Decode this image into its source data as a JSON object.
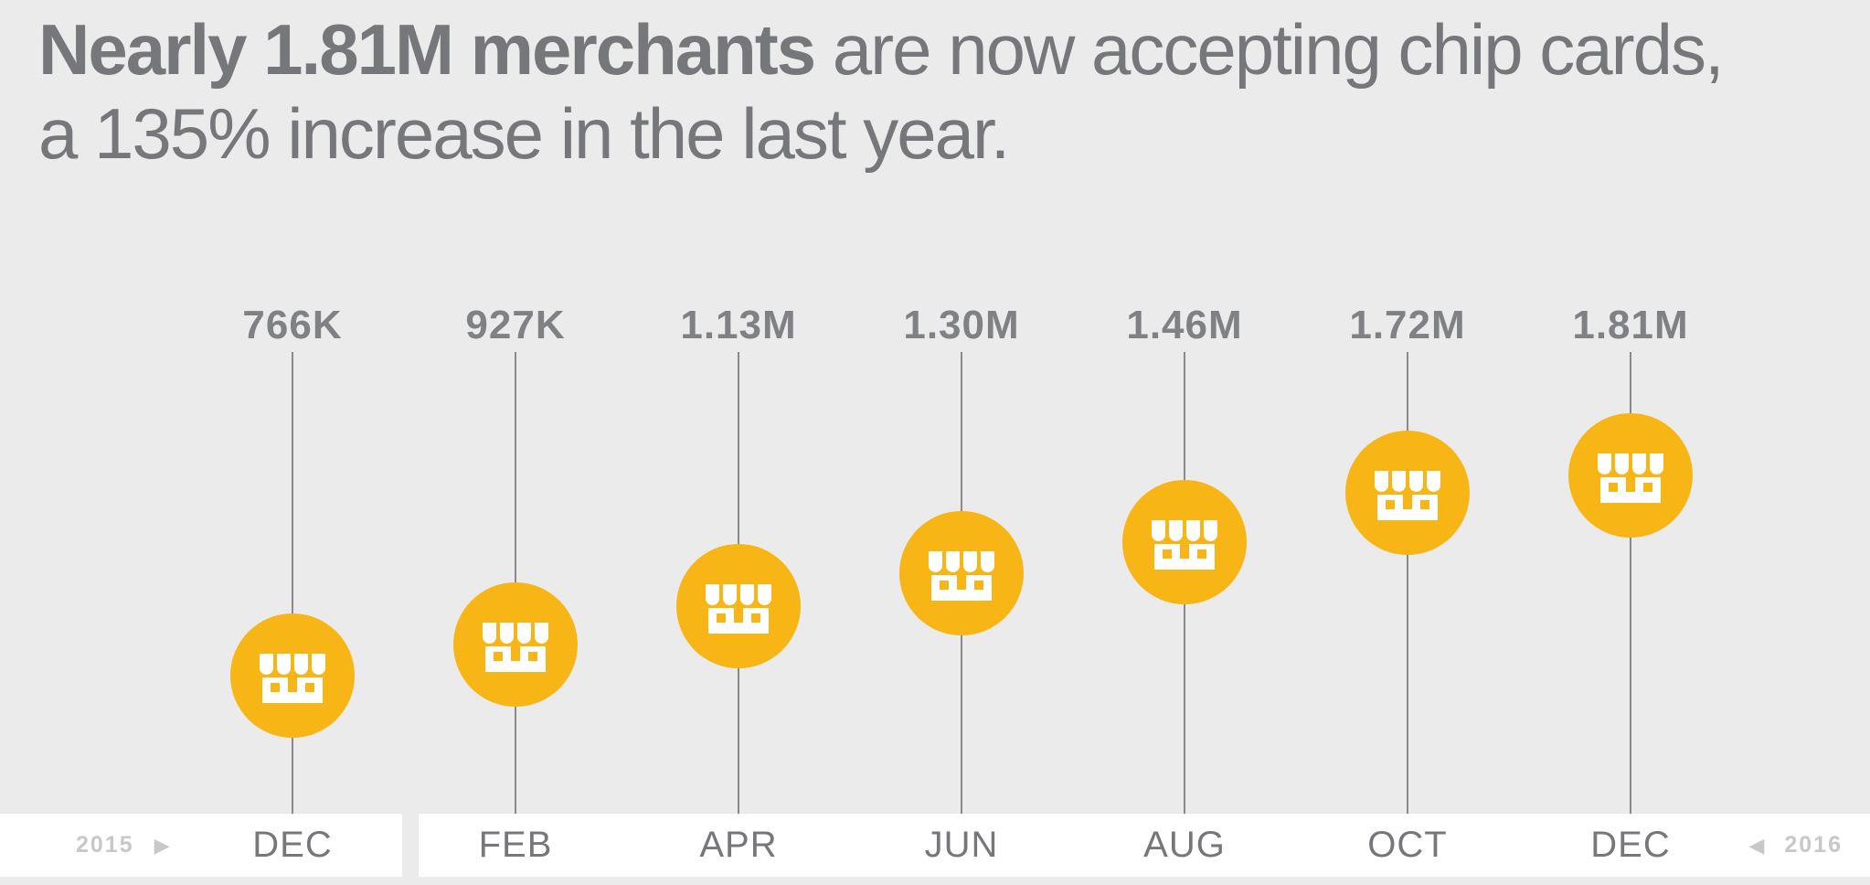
{
  "title": {
    "line1_bold": "Nearly 1.81M merchants",
    "line1_regular": " are now accepting chip cards,",
    "line2": "a 135% increase in the last year."
  },
  "timeline": {
    "left_year": "2015",
    "right_year": "2016"
  },
  "icons": {
    "right_arrow": "▶",
    "left_arrow": "◀",
    "merchant": "storefront-icon"
  },
  "colors": {
    "background": "#EBEBEC",
    "accent": "#F7B516",
    "white": "#FFFFFF",
    "text_dark": "#76777B",
    "value_text": "#7F8184",
    "text_light": "#C7C8CA",
    "line": "#898A8D"
  },
  "chart_data": {
    "type": "timeline",
    "title": "Merchants accepting chip cards, Dec 2015 - Dec 2016",
    "categories": [
      "DEC",
      "FEB",
      "APR",
      "JUN",
      "AUG",
      "OCT",
      "DEC"
    ],
    "series": [
      {
        "name": "Merchants accepting chip cards",
        "labels": [
          "766K",
          "927K",
          "1.13M",
          "1.30M",
          "1.46M",
          "1.72M",
          "1.81M"
        ],
        "values_thousands": [
          766,
          927,
          1130,
          1300,
          1460,
          1720,
          1810
        ]
      }
    ],
    "annotations": {
      "headline_value": "1.81M",
      "yoy_increase_percent": 135
    },
    "x_axis": {
      "start_year": "2015",
      "end_year": "2016"
    },
    "layout_hints": {
      "value_range_thousands": [
        766,
        1810
      ],
      "higher_value_sits_higher": true,
      "legend": "none",
      "grid": "off"
    }
  }
}
